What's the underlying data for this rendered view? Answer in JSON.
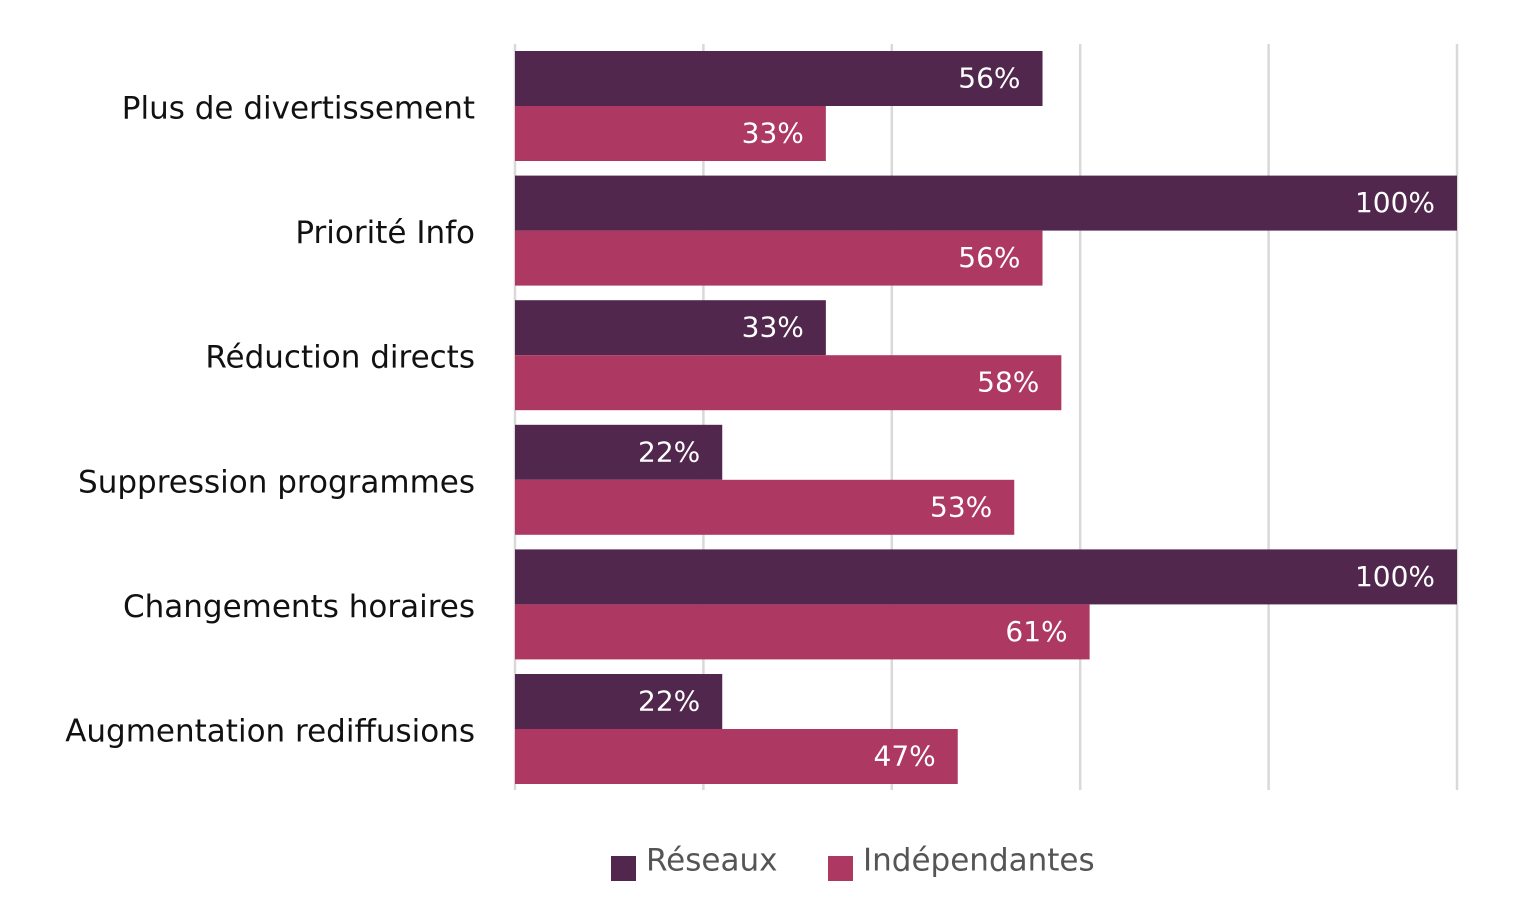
{
  "chart_data": {
    "type": "bar",
    "orientation": "horizontal",
    "categories": [
      "Plus de divertissement",
      "Priorité Info",
      "Réduction directs",
      "Suppression programmes",
      "Changements horaires",
      "Augmentation rediffusions"
    ],
    "series": [
      {
        "name": "Réseaux",
        "color": "#52274d",
        "values": [
          56,
          100,
          33,
          22,
          100,
          22
        ],
        "labels": [
          "56%",
          "100%",
          "33%",
          "22%",
          "100%",
          "22%"
        ]
      },
      {
        "name": "Indépendantes",
        "color": "#ad3962",
        "values": [
          33,
          56,
          58,
          53,
          61,
          47
        ],
        "labels": [
          "33%",
          "56%",
          "58%",
          "53%",
          "61%",
          "47%"
        ]
      }
    ],
    "xlim": [
      0,
      100
    ],
    "grid": true,
    "legend": "bottom",
    "title": "",
    "xlabel": "",
    "ylabel": ""
  }
}
